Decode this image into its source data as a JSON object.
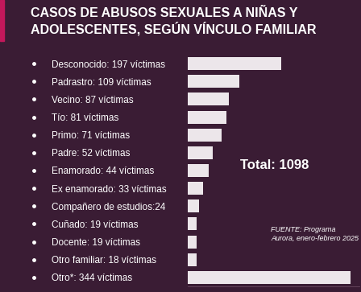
{
  "chart_data": {
    "type": "bar",
    "orientation": "horizontal",
    "title": "CASOS DE ABUSOS SEXUALES A NIÑAS Y ADOLESCENTES, SEGÚN VÍNCULO FAMILIAR",
    "categories": [
      "Desconocido: 197 víctimas",
      "Padrastro: 109 víctimas",
      "Vecino: 87 víctimas",
      "Tío: 81 víctimas",
      "Primo: 71 víctimas",
      "Padre: 52 víctimas",
      "Enamorado: 44 víctimas",
      "Ex enamorado: 33 víctimas",
      "Compañero de estudios:24",
      "Cuñado: 19 víctimas",
      "Docente: 19 víctimas",
      "Otro familiar: 18 víctimas",
      "Otro*: 344 víctimas"
    ],
    "values": [
      197,
      109,
      87,
      81,
      71,
      52,
      44,
      33,
      24,
      19,
      19,
      18,
      344
    ],
    "color": "#ece6ea",
    "xlim": [
      0,
      362
    ],
    "tick_labels": "y",
    "grid": false,
    "annotations": [
      "Total: 1098",
      "FUENTE: Programa Aurora, enero-febrero 2025"
    ]
  }
}
